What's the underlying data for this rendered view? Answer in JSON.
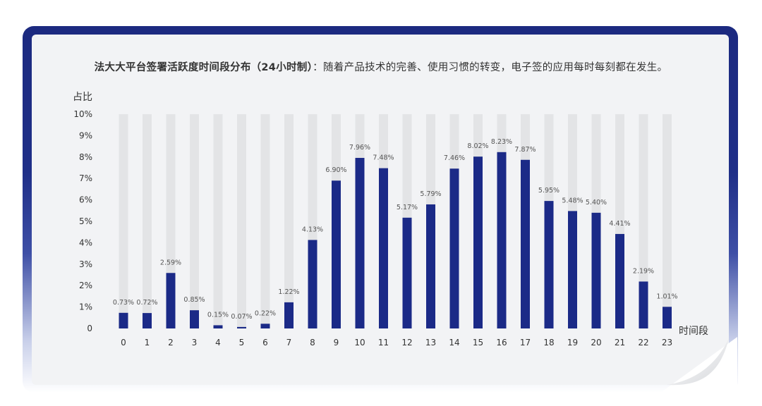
{
  "title": {
    "bold": "法大大平台签署活跃度时间段分布（24小时制）",
    "rest": "：随着产品技术的完善、使用习惯的转变，电子签的应用每时每刻都在发生。"
  },
  "colors": {
    "bar": "#1b2a87",
    "track": "#e3e4e6",
    "frame": "#1c2a80",
    "axis_label": "#1b2a87"
  },
  "chart_data": {
    "type": "bar",
    "title": "法大大平台签署活跃度时间段分布（24小时制）",
    "xlabel": "时间段",
    "ylabel": "占比",
    "categories": [
      "0",
      "1",
      "2",
      "3",
      "4",
      "5",
      "6",
      "7",
      "8",
      "9",
      "10",
      "11",
      "12",
      "13",
      "14",
      "15",
      "16",
      "17",
      "18",
      "19",
      "20",
      "21",
      "22",
      "23"
    ],
    "values": [
      0.73,
      0.72,
      2.59,
      0.85,
      0.15,
      0.07,
      0.22,
      1.22,
      4.13,
      6.9,
      7.96,
      7.48,
      5.17,
      5.79,
      7.46,
      8.02,
      8.23,
      7.87,
      5.95,
      5.48,
      5.4,
      4.41,
      2.19,
      1.01
    ],
    "labels": [
      "0.73%",
      "0.72%",
      "2.59%",
      "0.85%",
      "0.15%",
      "0.07%",
      "0.22%",
      "1.22%",
      "4.13%",
      "6.90%",
      "7.96%",
      "7.48%",
      "5.17%",
      "5.79%",
      "7.46%",
      "8.02%",
      "8.23%",
      "7.87%",
      "5.95%",
      "5.48%",
      "5.40%",
      "4.41%",
      "2.19%",
      "1.01%"
    ],
    "yticks": [
      "0",
      "1%",
      "2%",
      "3%",
      "4%",
      "5%",
      "6%",
      "7%",
      "8%",
      "9%",
      "10%"
    ],
    "ylim": [
      0,
      10
    ],
    "grid": false,
    "background_tracks": true
  }
}
